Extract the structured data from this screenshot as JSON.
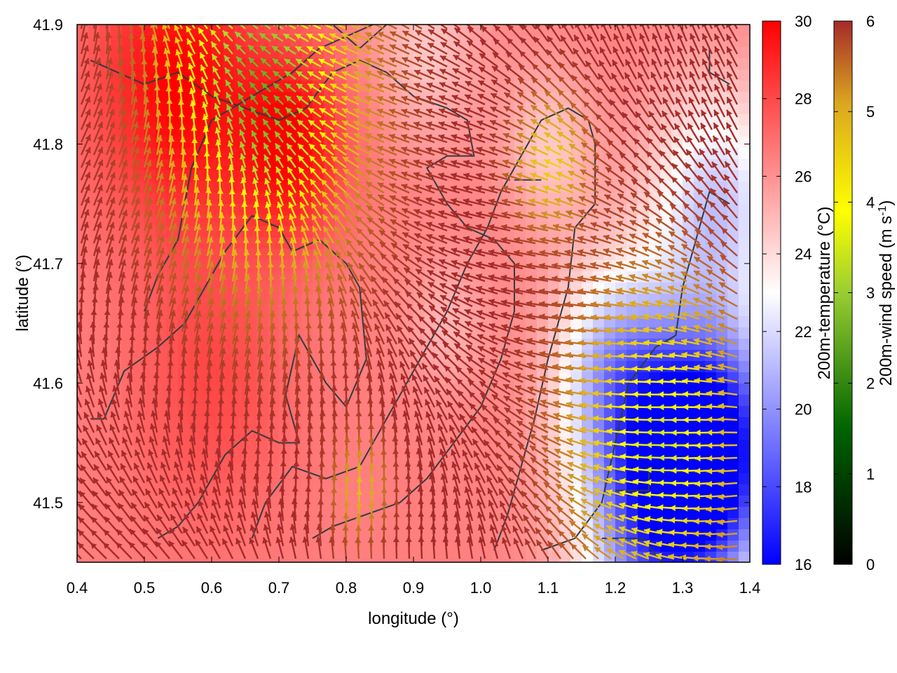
{
  "chart_data": {
    "type": "heatmap",
    "title": "",
    "xlabel": "longitude (°)",
    "ylabel": "latitude (°)",
    "xlim": [
      0.4,
      1.4
    ],
    "ylim": [
      41.45,
      41.9
    ],
    "x_ticks": [
      "0.4",
      "0.5",
      "0.6",
      "0.7",
      "0.8",
      "0.9",
      "1.0",
      "1.1",
      "1.2",
      "1.3",
      "1.4"
    ],
    "y_ticks": [
      "41.5",
      "41.6",
      "41.7",
      "41.8",
      "41.9"
    ],
    "grid": false,
    "temperature_colorbar": {
      "label": "200m-temperature (°C)",
      "range": [
        16,
        30
      ],
      "ticks": [
        "16",
        "18",
        "20",
        "22",
        "24",
        "26",
        "28",
        "30"
      ],
      "colors": [
        "#0000ff",
        "#ffffff",
        "#ff0000"
      ]
    },
    "wind_colorbar": {
      "label": "200m-wind speed (m s",
      "label_sup": "-1",
      "label_end": ")",
      "range": [
        0,
        6
      ],
      "ticks": [
        "0",
        "1",
        "2",
        "3",
        "4",
        "5",
        "6"
      ],
      "colors": [
        "#000000",
        "#006400",
        "#9acd32",
        "#ffff00",
        "#daa520",
        "#a52a2a"
      ]
    },
    "temperature_field": {
      "background_c": 26.5,
      "features": [
        {
          "lon": 0.72,
          "lat": 41.8,
          "t": 29.8,
          "r": 0.08
        },
        {
          "lon": 0.55,
          "lat": 41.85,
          "t": 30,
          "r": 0.12
        },
        {
          "lon": 0.6,
          "lat": 41.6,
          "t": 28,
          "r": 0.12
        },
        {
          "lon": 1.27,
          "lat": 41.5,
          "t": 17.5,
          "r": 0.12
        },
        {
          "lon": 1.35,
          "lat": 41.55,
          "t": 18,
          "r": 0.1
        },
        {
          "lon": 1.35,
          "lat": 41.75,
          "t": 21.5,
          "r": 0.1
        },
        {
          "lon": 1.2,
          "lat": 41.62,
          "t": 22,
          "r": 0.09
        },
        {
          "lon": 0.92,
          "lat": 41.88,
          "t": 24.5,
          "r": 0.08
        },
        {
          "lon": 1.1,
          "lat": 41.8,
          "t": 24.5,
          "r": 0.07
        },
        {
          "lon": 0.95,
          "lat": 41.65,
          "t": 25,
          "r": 0.06
        }
      ]
    },
    "wind_field": {
      "slow_zones": [
        {
          "lon": 0.68,
          "lat": 41.84,
          "speed": 2.5,
          "r": 0.14
        },
        {
          "lon": 1.28,
          "lat": 41.55,
          "speed": 3.5,
          "r": 0.12
        },
        {
          "lon": 1.12,
          "lat": 41.78,
          "speed": 4.5,
          "r": 0.05
        },
        {
          "lon": 0.82,
          "lat": 41.5,
          "speed": 4.8,
          "r": 0.04
        }
      ],
      "background_speed": 6
    }
  }
}
